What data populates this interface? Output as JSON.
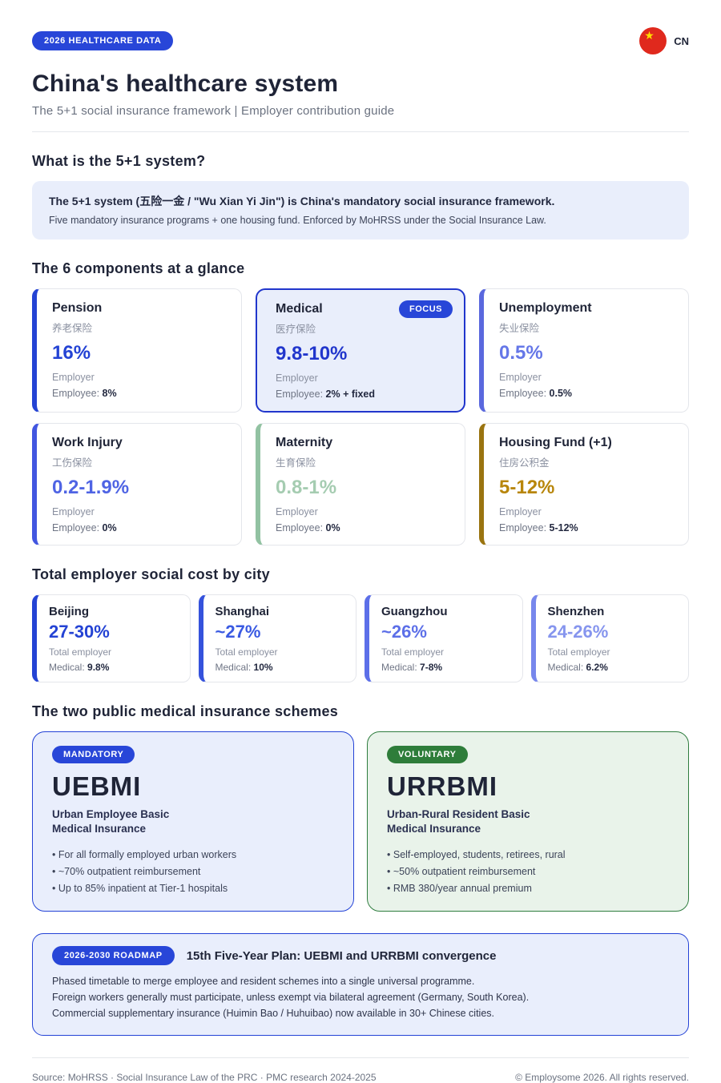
{
  "header": {
    "badge": "2026 HEALTHCARE DATA",
    "flag_label": "CN",
    "title": "China's healthcare system",
    "subtitle": "The 5+1 social insurance framework  |  Employer contribution guide"
  },
  "intro": {
    "heading": "What is the 5+1 system?",
    "box_title": "The 5+1 system (五险一金 / \"Wu Xian Yi Jin\") is China's mandatory social insurance framework.",
    "box_text": "Five mandatory insurance programs + one housing fund. Enforced by MoHRSS under the Social Insurance Law."
  },
  "components": {
    "heading": "The 6 components at a glance",
    "focus_label": "FOCUS",
    "cards": [
      {
        "name": "Pension",
        "zh": "养老保险",
        "rate": "16%",
        "payer": "Employer",
        "employee_label": "Employee: ",
        "employee": "8%",
        "accent": "#2443d4",
        "rate_color": "#2443d4"
      },
      {
        "name": "Medical",
        "zh": "医疗保险",
        "rate": "9.8-10%",
        "payer": "Employer",
        "employee_label": "Employee: ",
        "employee": "2% + fixed",
        "accent": "#2136cc",
        "rate_color": "#2136cc"
      },
      {
        "name": "Unemployment",
        "zh": "失业保险",
        "rate": "0.5%",
        "payer": "Employer",
        "employee_label": "Employee: ",
        "employee": "0.5%",
        "accent": "#5a68de",
        "rate_color": "#6577e8"
      },
      {
        "name": "Work Injury",
        "zh": "工伤保险",
        "rate": "0.2-1.9%",
        "payer": "Employer",
        "employee_label": "Employee: ",
        "employee": "0%",
        "accent": "#4256e0",
        "rate_color": "#4f64e4"
      },
      {
        "name": "Maternity",
        "zh": "生育保险",
        "rate": "0.8-1%",
        "payer": "Employer",
        "employee_label": "Employee: ",
        "employee": "0%",
        "accent": "#92c2a2",
        "rate_color": "#a5ccb1"
      },
      {
        "name": "Housing Fund (+1)",
        "zh": "住房公积金",
        "rate": "5-12%",
        "payer": "Employer",
        "employee_label": "Employee: ",
        "employee": "5-12%",
        "accent": "#9a7410",
        "rate_color": "#b8860b"
      }
    ]
  },
  "cities": {
    "heading": "Total employer social cost by city",
    "cards": [
      {
        "name": "Beijing",
        "rate": "27-30%",
        "sub": "Total employer",
        "medical_label": "Medical: ",
        "medical": "9.8%",
        "accent": "#2443d4",
        "rate_color": "#2443d4"
      },
      {
        "name": "Shanghai",
        "rate": "~27%",
        "sub": "Total employer",
        "medical_label": "Medical: ",
        "medical": "10%",
        "accent": "#3552dc",
        "rate_color": "#3a5ae2"
      },
      {
        "name": "Guangzhou",
        "rate": "~26%",
        "sub": "Total employer",
        "medical_label": "Medical: ",
        "medical": "7-8%",
        "accent": "#5c6fe8",
        "rate_color": "#5c6fe8"
      },
      {
        "name": "Shenzhen",
        "rate": "24-26%",
        "sub": "Total employer",
        "medical_label": "Medical: ",
        "medical": "6.2%",
        "accent": "#7787ec",
        "rate_color": "#8695ee"
      }
    ]
  },
  "schemes": {
    "heading": "The two public medical insurance schemes",
    "cards": [
      {
        "badge": "MANDATORY",
        "abbr": "UEBMI",
        "full_line1": "Urban Employee Basic",
        "full_line2": "Medical Insurance",
        "bullets": [
          "For all formally employed urban workers",
          "~70% outpatient reimbursement",
          "Up to 85% inpatient at Tier-1 hospitals"
        ]
      },
      {
        "badge": "VOLUNTARY",
        "abbr": "URRBMI",
        "full_line1": "Urban-Rural Resident Basic",
        "full_line2": "Medical Insurance",
        "bullets": [
          "Self-employed, students, retirees, rural",
          "~50% outpatient reimbursement",
          "RMB 380/year annual premium"
        ]
      }
    ]
  },
  "roadmap": {
    "badge": "2026-2030 ROADMAP",
    "title": "15th Five-Year Plan: UEBMI and URRBMI convergence",
    "lines": [
      "Phased timetable to merge employee and resident schemes into a single universal programme.",
      "Foreign workers generally must participate, unless exempt via bilateral agreement (Germany, South Korea).",
      "Commercial supplementary insurance (Huimin Bao / Huhuibao) now available in 30+ Chinese cities."
    ]
  },
  "footer": {
    "left": "Source: MoHRSS  ·  Social Insurance Law of the PRC  ·  PMC research 2024-2025",
    "right": "© Employsome 2026. All rights reserved."
  },
  "colors": {
    "primary_blue": "#2846d8",
    "dark_navy": "#1f2437",
    "periwinkle": "#6577e8",
    "soft_green": "#a5ccb1",
    "gold": "#b8860b",
    "green_badge": "#2e7d3a",
    "flag_red": "#e0291d",
    "star_yellow": "#ffde00",
    "box_lavender": "#e9eefb",
    "box_green": "#e9f3ea"
  }
}
